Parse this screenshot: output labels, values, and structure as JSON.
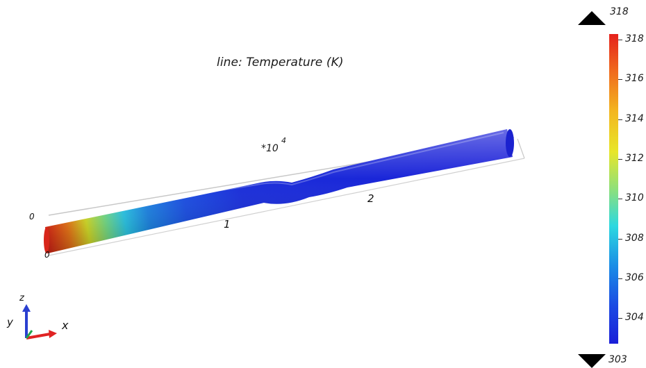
{
  "title": "line: Temperature (K)",
  "scale_note": {
    "base": "*10",
    "exponent": "4"
  },
  "line_labels": {
    "origin_top": "0",
    "origin_bottom": "0",
    "tick_1": "1",
    "tick_2": "2"
  },
  "axes_triad": {
    "z": "z",
    "y": "y",
    "x": "x"
  },
  "colorbar": {
    "max_marker_label": "318",
    "min_marker_label": "303",
    "ticks": [
      "318",
      "316",
      "314",
      "312",
      "310",
      "308",
      "306",
      "304"
    ],
    "colormap": "rainbow",
    "range": [
      303,
      318
    ]
  },
  "colors": {
    "pipe_base": "#1a1ed8",
    "pipe_hot": "#e5211c",
    "frame_line": "#c8c8c8"
  }
}
